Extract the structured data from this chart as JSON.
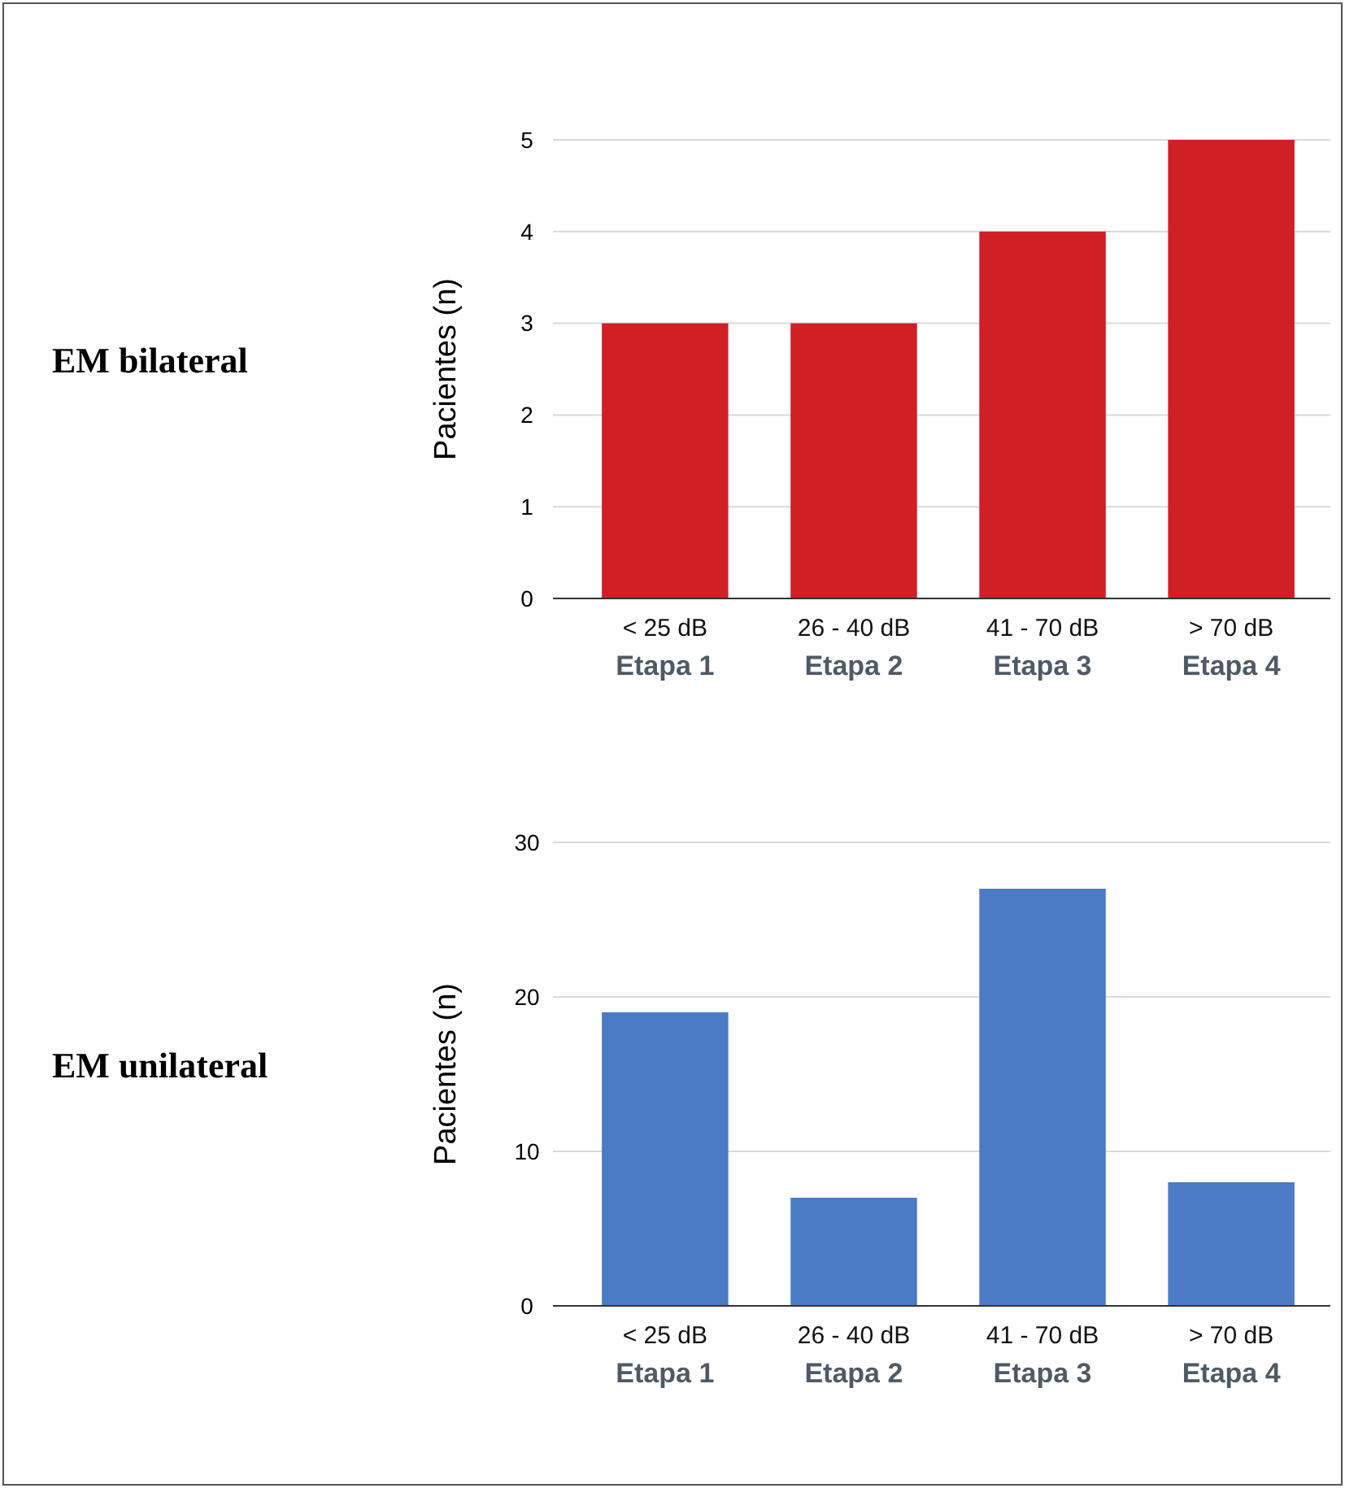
{
  "chart_data": [
    {
      "type": "bar",
      "annotations": [
        "EM bilateral"
      ],
      "ylabel": "Pacientes (n)",
      "categories": [
        "< 25 dB\nEtapa 1",
        "26 - 40 dB\nEtapa 2",
        "41 - 70 dB\nEtapa 3",
        "> 70 dB\nEtapa 4"
      ],
      "values": [
        3,
        3,
        4,
        5
      ],
      "color": "#d11f26",
      "ylim": [
        0,
        5
      ],
      "yticks": [
        0,
        1,
        2,
        3,
        4,
        5
      ],
      "grid": "y"
    },
    {
      "type": "bar",
      "annotations": [
        "EM unilateral"
      ],
      "ylabel": "Pacientes (n)",
      "categories": [
        "< 25 dB\nEtapa 1",
        "26 - 40 dB\nEtapa 2",
        "41 - 70 dB\nEtapa 3",
        "> 70 dB\nEtapa 4"
      ],
      "values": [
        19,
        7,
        27,
        8
      ],
      "color": "#4a7bc4",
      "ylim": [
        0,
        30
      ],
      "yticks": [
        0,
        10,
        20,
        30
      ],
      "grid": "y"
    }
  ]
}
